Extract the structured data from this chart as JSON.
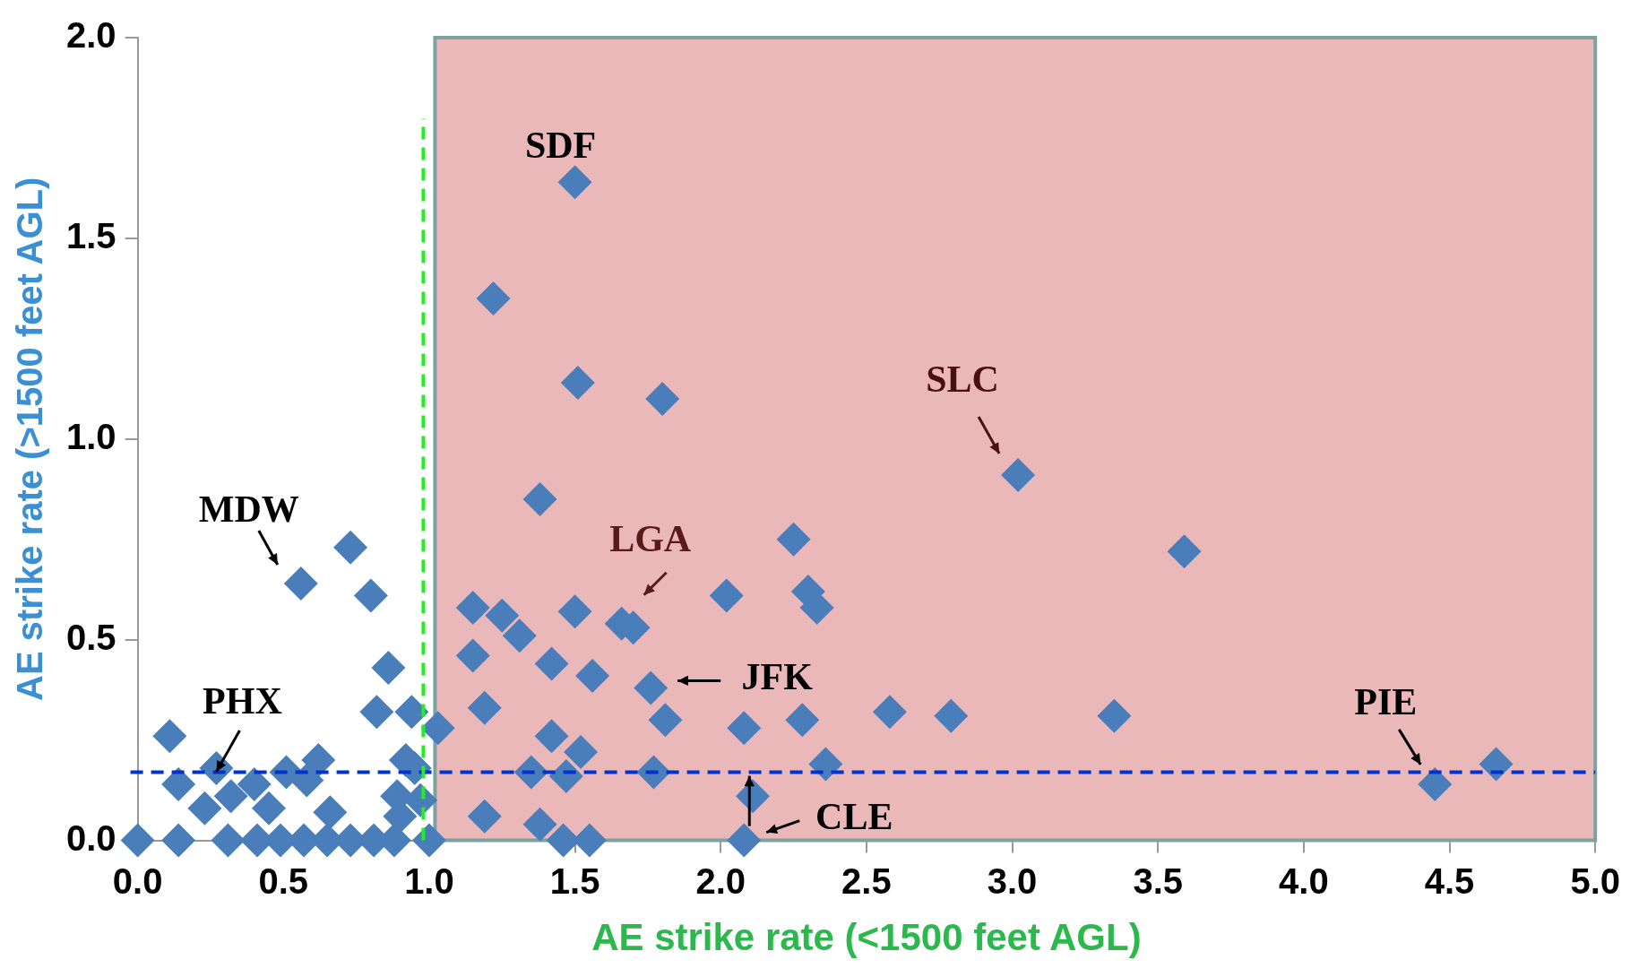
{
  "chart_data": {
    "type": "scatter",
    "xlabel": "AE strike rate (<1500 feet AGL)",
    "ylabel": "AE strike rate (>1500 feet AGL)",
    "x": [
      1.5,
      1.22,
      1.51,
      1.8,
      3.02,
      1.38,
      3.59,
      2.25,
      0.73,
      0.56,
      0.8,
      2.02,
      2.3,
      2.33,
      1.5,
      1.15,
      1.25,
      1.31,
      1.66,
      1.7,
      1.15,
      1.42,
      1.56,
      0.86,
      1.76,
      1.19,
      0.82,
      1.81,
      0.94,
      2.08,
      2.28,
      2.58,
      2.79,
      3.35,
      1.42,
      1.52,
      2.36,
      4.66,
      4.45,
      2.11,
      2.08,
      1.77,
      1.35,
      1.47,
      1.19,
      1.38,
      1.46,
      1.55,
      1.0,
      0.97,
      0.95,
      0.11,
      0.14,
      0.27,
      0.23,
      0.32,
      0.4,
      0.45,
      0.51,
      0.62,
      0.58,
      0.66,
      0.89,
      0.92,
      1.03,
      0.0,
      0.14,
      0.31,
      0.41,
      0.49,
      0.57,
      0.65,
      0.73,
      0.81,
      0.88,
      0.9
    ],
    "values": [
      1.64,
      1.35,
      1.14,
      1.1,
      0.91,
      0.85,
      0.72,
      0.75,
      0.73,
      0.64,
      0.61,
      0.61,
      0.62,
      0.58,
      0.57,
      0.58,
      0.56,
      0.51,
      0.54,
      0.53,
      0.46,
      0.44,
      0.41,
      0.43,
      0.38,
      0.33,
      0.32,
      0.3,
      0.32,
      0.28,
      0.3,
      0.32,
      0.31,
      0.31,
      0.26,
      0.22,
      0.19,
      0.19,
      0.14,
      0.11,
      0.0,
      0.17,
      0.17,
      0.16,
      0.06,
      0.04,
      0.0,
      0.0,
      0.0,
      0.1,
      0.18,
      0.26,
      0.14,
      0.18,
      0.08,
      0.11,
      0.14,
      0.08,
      0.17,
      0.2,
      0.15,
      0.07,
      0.11,
      0.2,
      0.28,
      0.0,
      0.0,
      0.0,
      0.0,
      0.0,
      0.0,
      0.0,
      0.0,
      0.0,
      0.0,
      0.06
    ],
    "color": "#4a7ebb",
    "marker": "diamond",
    "xlim": [
      0,
      5
    ],
    "xticks": [
      {
        "value": 0,
        "label": "0.0"
      },
      {
        "value": 0.5,
        "label": "0.5"
      },
      {
        "value": 1,
        "label": "1.0"
      },
      {
        "value": 1.5,
        "label": "1.5"
      },
      {
        "value": 2,
        "label": "2.0"
      },
      {
        "value": 2.5,
        "label": "2.5"
      },
      {
        "value": 3,
        "label": "3.0"
      },
      {
        "value": 3.5,
        "label": "3.5"
      },
      {
        "value": 4,
        "label": "4.0"
      },
      {
        "value": 4.5,
        "label": "4.5"
      },
      {
        "value": 5,
        "label": "5.0"
      }
    ],
    "ylim": [
      0,
      2
    ],
    "yticks": [
      {
        "value": 0,
        "label": "0.0"
      },
      {
        "value": 0.5,
        "label": "0.5"
      },
      {
        "value": 1,
        "label": "1.0"
      },
      {
        "value": 1.5,
        "label": "1.5"
      },
      {
        "value": 2,
        "label": "2.0"
      }
    ],
    "grid": false,
    "legend": false,
    "ref_lines": [
      {
        "axis": "y",
        "value": 0.17,
        "color": "#0033cc",
        "line_style": "dashed"
      },
      {
        "axis": "x",
        "value": 0.98,
        "color": "#22ee22",
        "line_style": "dashed"
      }
    ],
    "bands": [
      {
        "axis": "x",
        "from": 1.02,
        "to": 5,
        "color": "#e39a9c"
      }
    ],
    "annotations": [
      {
        "text": "SDF",
        "x": 1.5,
        "y": 1.64
      },
      {
        "text": "SLC",
        "x": 3.02,
        "y": 0.91
      },
      {
        "text": "LGA",
        "x": 1.66,
        "y": 0.54
      },
      {
        "text": "MDW",
        "x": 0.56,
        "y": 0.64
      },
      {
        "text": "PHX",
        "x": 0.27,
        "y": 0.18
      },
      {
        "text": "JFK",
        "x": 1.76,
        "y": 0.38
      },
      {
        "text": "CLE",
        "x": 2.08,
        "y": 0.0
      },
      {
        "text": "PIE",
        "x": 4.45,
        "y": 0.14
      }
    ]
  }
}
